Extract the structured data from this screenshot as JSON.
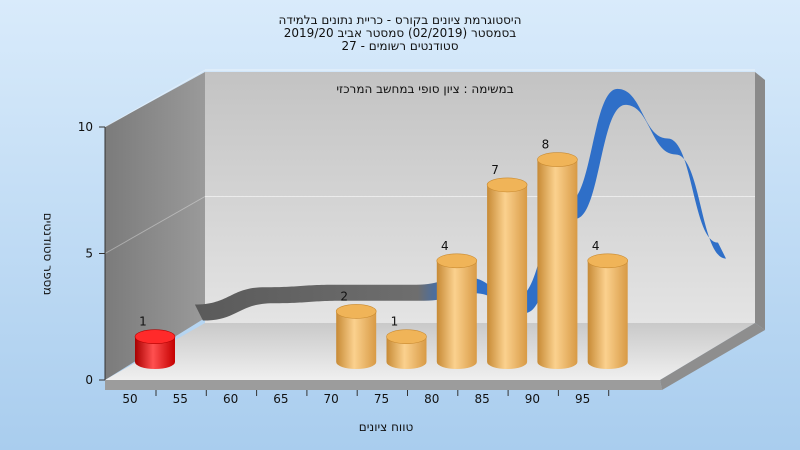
{
  "chart_data": {
    "type": "bar",
    "title_lines": [
      "היסטוגרמת ציונים בקורס - כריית נתונים בלמידה",
      "בסמסטר  (02/2019)  סמסטר אביב 2019/20",
      "סטודנטים רשומים - 27"
    ],
    "annotation": "במשימה : ציון סופי במחשב המרכזי",
    "xlabel": "טווח ציונים",
    "ylabel": "מספר סטודנטים",
    "x_ticks": [
      "50",
      "55",
      "60",
      "65",
      "70",
      "75",
      "80",
      "85",
      "90",
      "95"
    ],
    "y_ticks": [
      "0",
      "5",
      "10"
    ],
    "ylim": [
      0,
      10
    ],
    "bars": [
      {
        "x": 50,
        "value": 1,
        "label": "1",
        "color": "#e01010"
      },
      {
        "x": 70,
        "value": 2,
        "label": "2",
        "color": "#e8a848"
      },
      {
        "x": 75,
        "value": 1,
        "label": "1",
        "color": "#e8a848"
      },
      {
        "x": 80,
        "value": 4,
        "label": "4",
        "color": "#e8a848"
      },
      {
        "x": 85,
        "value": 7,
        "label": "7",
        "color": "#e8a848"
      },
      {
        "x": 90,
        "value": 8,
        "label": "8",
        "color": "#e8a848"
      },
      {
        "x": 95,
        "value": 4,
        "label": "4",
        "color": "#e8a848"
      }
    ],
    "curve_color": "#2f6fc8",
    "grid": true,
    "background": "#b4d4f2"
  }
}
